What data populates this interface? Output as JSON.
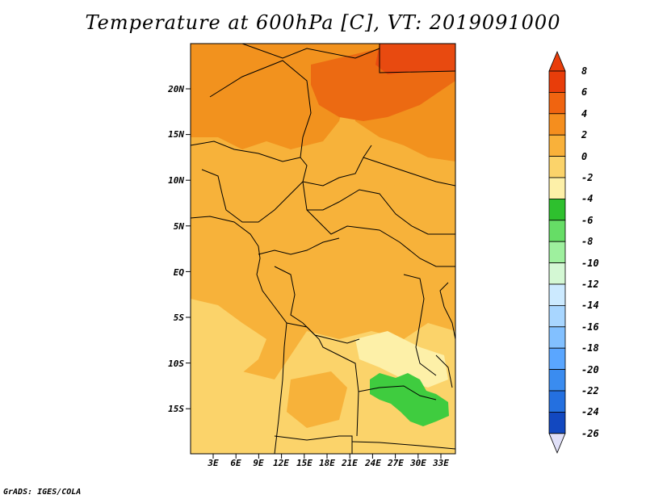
{
  "title": "Temperature at 600hPa [C], VT: 2019091000",
  "footer": "GrADS: IGES/COLA",
  "map": {
    "lat_labels": [
      "20N",
      "15N",
      "10N",
      "5N",
      "EQ",
      "5S",
      "10S",
      "15S"
    ],
    "lon_labels": [
      "3E",
      "6E",
      "9E",
      "12E",
      "15E",
      "18E",
      "21E",
      "24E",
      "27E",
      "30E",
      "33E"
    ],
    "colors": {
      "warm_light": "#fbd36a",
      "warm_mid": "#f7b23a",
      "warm_deep": "#f2921e",
      "warm_hot": "#ec6a12",
      "cool_green": "#3fcc3f",
      "pale": "#fdf0a8"
    }
  },
  "colorbar": {
    "labels": [
      "8",
      "6",
      "4",
      "2",
      "0",
      "-2",
      "-4",
      "-6",
      "-8",
      "-10",
      "-12",
      "-14",
      "-16",
      "-18",
      "-20",
      "-22",
      "-24",
      "-26"
    ],
    "colors": [
      "#e83d0a",
      "#f06410",
      "#f58e1e",
      "#f9b13a",
      "#fbd36a",
      "#fdf0a8",
      "#2ec02e",
      "#66dd66",
      "#9ef09e",
      "#d4f8d4",
      "#cceaff",
      "#a8d6ff",
      "#82c0ff",
      "#5aa6ff",
      "#3a8cf0",
      "#2470e0",
      "#1248c0",
      "#0a1a7a"
    ],
    "top_arrow_color": "#e83d0a",
    "bottom_arrow_color": "#e0e0f8"
  }
}
